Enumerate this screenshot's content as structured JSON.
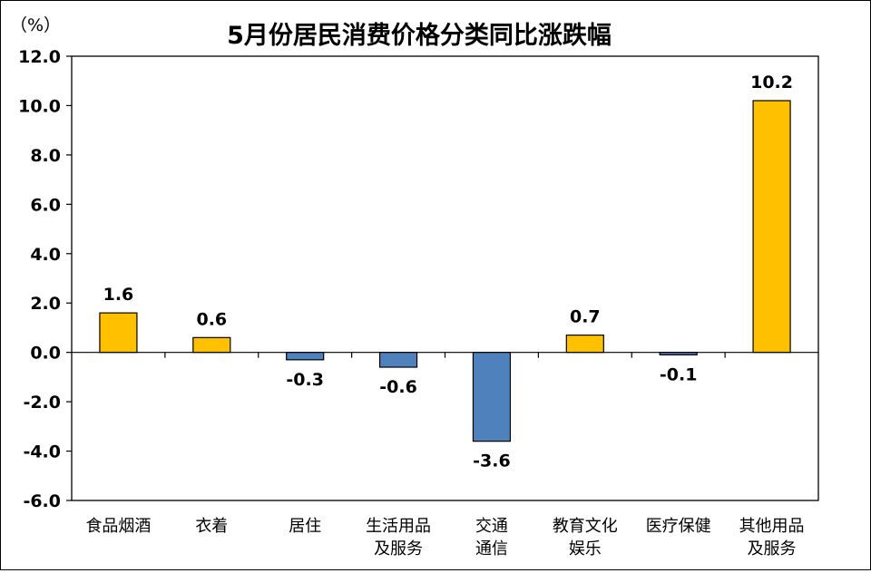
{
  "chart_data": {
    "type": "bar",
    "title": "5月份居民消费价格分类同比涨跌幅",
    "unit_label": "（%）",
    "categories": [
      [
        "食品烟酒"
      ],
      [
        "衣着"
      ],
      [
        "居住"
      ],
      [
        "生活用品",
        "及服务"
      ],
      [
        "交通",
        "通信"
      ],
      [
        "教育文化",
        "娱乐"
      ],
      [
        "医疗保健"
      ],
      [
        "其他用品",
        "及服务"
      ]
    ],
    "values": [
      1.6,
      0.6,
      -0.3,
      -0.6,
      -3.6,
      0.7,
      -0.1,
      10.2
    ],
    "value_labels": [
      "1.6",
      "0.6",
      "-0.3",
      "-0.6",
      "-3.6",
      "0.7",
      "-0.1",
      "10.2"
    ],
    "ylim": [
      -6.0,
      12.0
    ],
    "yticks": [
      12.0,
      10.0,
      8.0,
      6.0,
      4.0,
      2.0,
      0.0,
      -2.0,
      -4.0,
      -6.0
    ],
    "ytick_labels": [
      "12.0",
      "10.0",
      "8.0",
      "6.0",
      "4.0",
      "2.0",
      "0.0",
      "-2.0",
      "-4.0",
      "-6.0"
    ],
    "grid": false,
    "legend": "none",
    "colors": {
      "positive": "#FFC000",
      "negative": "#4F81BD",
      "outline": "#000000"
    }
  }
}
